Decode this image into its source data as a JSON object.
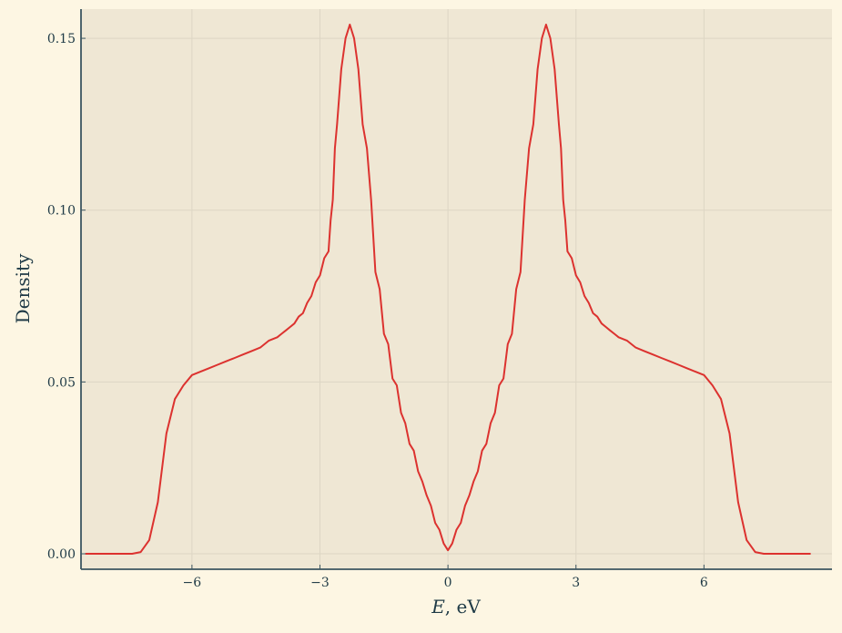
{
  "colors": {
    "page_background": "#fdf6e3",
    "plot_background": "#efe7d4",
    "grid": "#ddd6c4",
    "axis": "#3b5560",
    "text": "#1f3a46",
    "series": "#dc322f"
  },
  "chart_data": {
    "type": "line",
    "title": "",
    "xlabel_var": "E",
    "xlabel_rest": ", eV",
    "ylabel": "Density",
    "xlim": [
      -8.6,
      9.0
    ],
    "ylim": [
      -0.0045,
      0.1585
    ],
    "grid": true,
    "legend": "none",
    "x_ticks": [
      {
        "value": -6,
        "label": "−6"
      },
      {
        "value": -3,
        "label": "−3"
      },
      {
        "value": 0,
        "label": "0"
      },
      {
        "value": 3,
        "label": "3"
      },
      {
        "value": 6,
        "label": "6"
      }
    ],
    "y_ticks": [
      {
        "value": 0.0,
        "label": "0.00"
      },
      {
        "value": 0.05,
        "label": "0.05"
      },
      {
        "value": 0.1,
        "label": "0.10"
      },
      {
        "value": 0.15,
        "label": "0.15"
      }
    ],
    "series": [
      {
        "color": "#dc322f",
        "symmetric_about_zero": true,
        "x": [
          0.0,
          0.1,
          0.2,
          0.3,
          0.4,
          0.5,
          0.6,
          0.7,
          0.8,
          0.9,
          1.0,
          1.1,
          1.2,
          1.3,
          1.4,
          1.5,
          1.6,
          1.7,
          1.8,
          1.9,
          2.0,
          2.1,
          2.2,
          2.3,
          2.4,
          2.5,
          2.6,
          2.65,
          2.7,
          2.75,
          2.8,
          2.9,
          3.0,
          3.1,
          3.2,
          3.3,
          3.4,
          3.5,
          3.6,
          3.7,
          3.8,
          3.9,
          4.0,
          4.2,
          4.4,
          4.6,
          4.8,
          5.0,
          5.2,
          5.4,
          5.6,
          5.8,
          6.0,
          6.2,
          6.4,
          6.6,
          6.8,
          7.0,
          7.2,
          7.4,
          7.6,
          7.7,
          7.8,
          7.9,
          8.0,
          8.1,
          8.2,
          8.3,
          8.4,
          8.5
        ],
        "y": [
          0.001,
          0.003,
          0.007,
          0.009,
          0.014,
          0.017,
          0.021,
          0.024,
          0.03,
          0.032,
          0.038,
          0.041,
          0.049,
          0.051,
          0.061,
          0.064,
          0.077,
          0.082,
          0.103,
          0.118,
          0.125,
          0.141,
          0.15,
          0.154,
          0.15,
          0.141,
          0.125,
          0.118,
          0.103,
          0.097,
          0.088,
          0.086,
          0.081,
          0.079,
          0.075,
          0.073,
          0.07,
          0.069,
          0.067,
          0.066,
          0.065,
          0.064,
          0.063,
          0.062,
          0.06,
          0.059,
          0.058,
          0.057,
          0.056,
          0.055,
          0.054,
          0.053,
          0.052,
          0.049,
          0.045,
          0.035,
          0.015,
          0.004,
          0.0005,
          0.0,
          0.0,
          0.0,
          0.0,
          0.0,
          0.0,
          0.0,
          0.0,
          0.0,
          0.0,
          0.0
        ]
      }
    ]
  }
}
